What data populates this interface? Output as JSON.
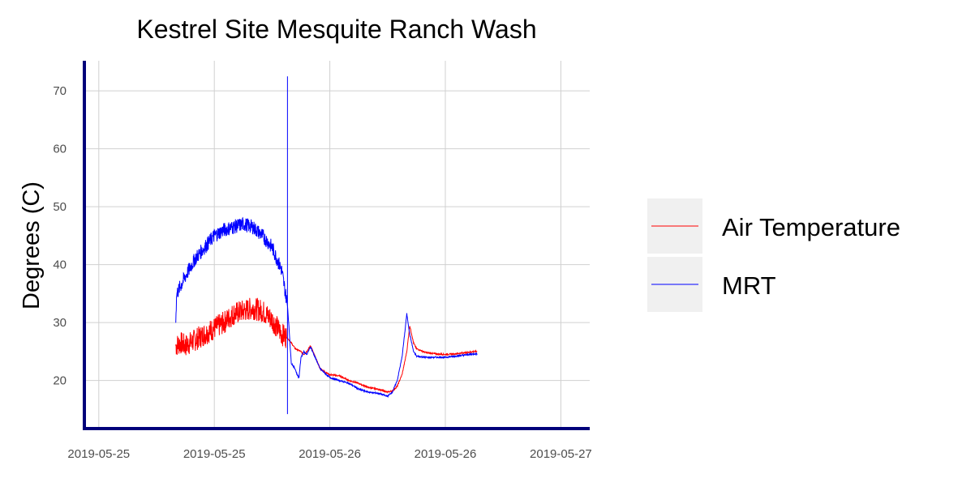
{
  "chart_data": {
    "type": "line",
    "title": "Kestrel Site Mesquite Ranch Wash",
    "xlabel": "",
    "ylabel": "Degrees (C)",
    "x_tick_labels": [
      "2019-05-25",
      "2019-05-25",
      "2019-05-26",
      "2019-05-26",
      "2019-05-27"
    ],
    "y_ticks": [
      20,
      30,
      40,
      50,
      60,
      70
    ],
    "ylim": [
      11.7,
      75.2
    ],
    "grid": true,
    "legend_position": "right",
    "x_note": "x values are hours after the first x tick (2019-05-25 00:00); tick labels appear every 12 hours",
    "xlim": [
      -1.5,
      51
    ],
    "series": [
      {
        "name": "Air Temperature",
        "color": "#ff0000",
        "noise": 4,
        "x": [
          8,
          8.5,
          9,
          10,
          11,
          12,
          13,
          14,
          15,
          16,
          17,
          18,
          19,
          19.5,
          20,
          20.4,
          21,
          21.3,
          21.6,
          22,
          23,
          24,
          25,
          26,
          27,
          28,
          29,
          30,
          30.5,
          31,
          31.5,
          32,
          32.3,
          32.7,
          33,
          34,
          35,
          36,
          37,
          38,
          39,
          39.3
        ],
        "y": [
          26,
          26.5,
          26,
          27,
          28,
          29,
          30,
          31.5,
          32,
          32.5,
          32,
          30.5,
          28,
          27.5,
          26.5,
          25.5,
          25,
          24.5,
          25,
          26,
          22,
          21,
          20.8,
          20,
          19.5,
          18.8,
          18.5,
          18,
          18.2,
          19,
          21,
          25,
          29.5,
          26.5,
          25.5,
          24.8,
          24.6,
          24.5,
          24.6,
          24.8,
          25,
          25
        ]
      },
      {
        "name": "MRT",
        "color": "#0000ff",
        "noise": 2.5,
        "x": [
          8,
          8.1,
          9,
          10,
          11,
          12,
          13,
          14,
          15,
          16,
          17,
          18,
          19,
          19.4,
          19.6,
          20,
          20.4,
          20.6,
          20.8,
          21,
          21.3,
          21.6,
          22,
          23,
          24,
          25,
          26,
          27,
          28,
          29,
          30,
          30.5,
          31,
          31.5,
          32,
          32.3,
          32.7,
          33,
          34,
          35,
          36,
          37,
          38,
          39,
          39.3
        ],
        "y": [
          31,
          35,
          38,
          41,
          43,
          45,
          46,
          46.5,
          47,
          46.5,
          45,
          43,
          39,
          35,
          33,
          23,
          22,
          21,
          20.5,
          24,
          25,
          24.5,
          25.8,
          22,
          20.5,
          20,
          19.5,
          18.5,
          18,
          17.8,
          17.3,
          18,
          20,
          24,
          31.5,
          28,
          25,
          24.2,
          24,
          24,
          24,
          24.2,
          24.4,
          24.6,
          24.6
        ]
      }
    ],
    "spikes": [
      {
        "series": "MRT",
        "x": 19.6,
        "ymin": 14.2,
        "ymax": 72.5
      }
    ]
  }
}
